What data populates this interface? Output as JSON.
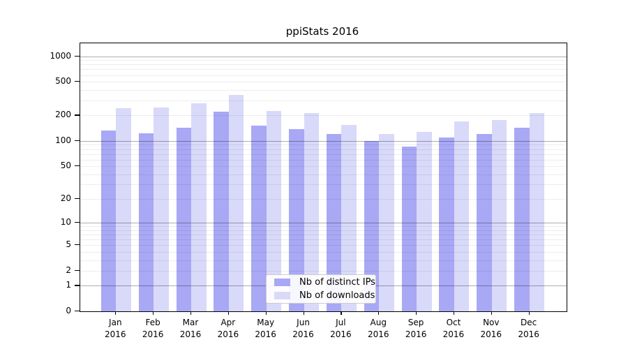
{
  "chart_data": {
    "type": "bar",
    "title": "ppiStats 2016",
    "scale": "log1p",
    "categories": [
      "Jan",
      "Feb",
      "Mar",
      "Apr",
      "May",
      "Jun",
      "Jul",
      "Aug",
      "Sep",
      "Oct",
      "Nov",
      "Dec"
    ],
    "year_label": "2016",
    "series": [
      {
        "name": "Nb of distinct IPs",
        "color": "#a8a8f5",
        "values": [
          134,
          124,
          144,
          220,
          151,
          139,
          121,
          100,
          86,
          110,
          121,
          144
        ]
      },
      {
        "name": "Nb of downloads",
        "color": "#d9d9f9",
        "values": [
          243,
          249,
          277,
          350,
          225,
          212,
          154,
          120,
          128,
          170,
          176,
          212
        ]
      }
    ],
    "y_ticks": [
      1000,
      500,
      200,
      100,
      50,
      20,
      10,
      5,
      2,
      1,
      0
    ],
    "y_minor_gridlines": [
      2,
      3,
      4,
      5,
      6,
      7,
      8,
      9,
      20,
      30,
      40,
      50,
      60,
      70,
      80,
      90,
      200,
      300,
      400,
      500,
      600,
      700,
      800,
      900
    ],
    "y_major_gridlines": [
      1,
      10,
      100,
      1000
    ],
    "ylim": [
      0,
      1420
    ],
    "xlabel": "",
    "ylabel": "",
    "grid": true,
    "legend_position": "bottom-center"
  },
  "colors": {
    "background": "#ffffff",
    "axis": "#000000",
    "major_grid": "#aaaaaa",
    "minor_grid": "#ededed",
    "legend_border": "#cccccc"
  }
}
